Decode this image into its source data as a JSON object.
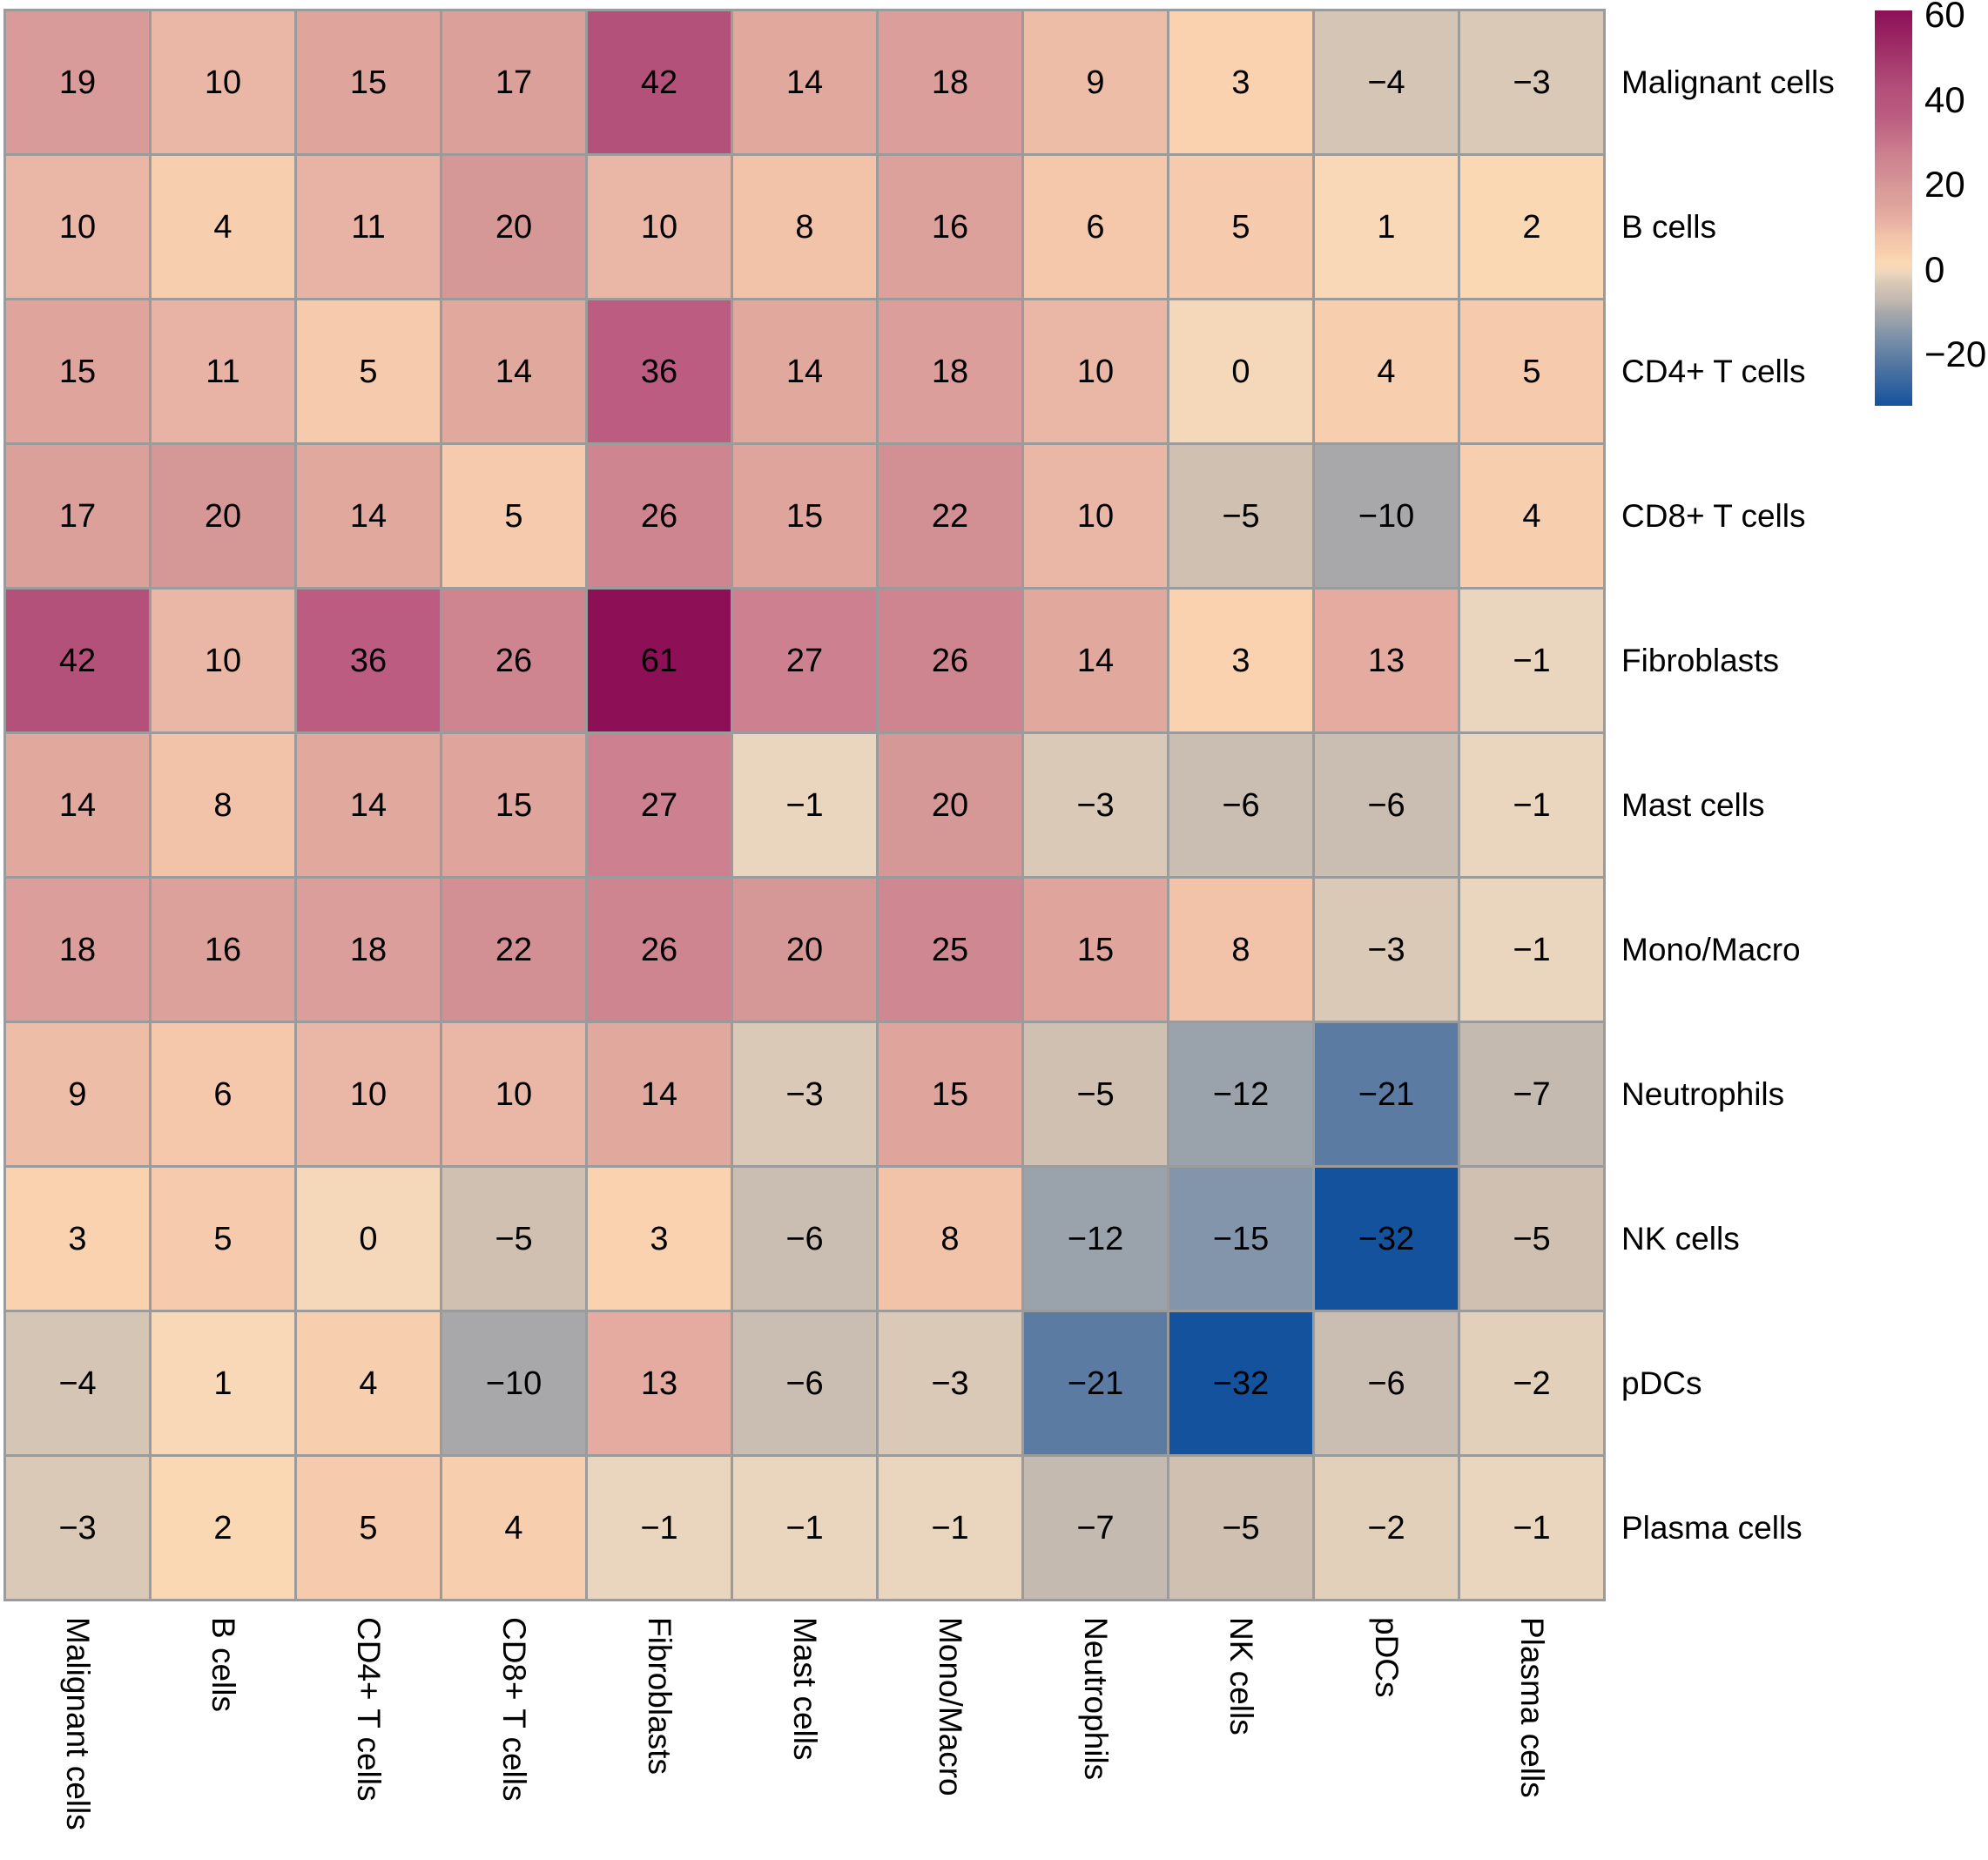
{
  "chart_data": {
    "type": "heatmap",
    "title": "",
    "rows": [
      "Malignant cells",
      "B cells",
      "CD4+ T cells",
      "CD8+ T cells",
      "Fibroblasts",
      "Mast cells",
      "Mono/Macro",
      "Neutrophils",
      "NK cells",
      "pDCs",
      "Plasma cells"
    ],
    "cols": [
      "Malignant cells",
      "B cells",
      "CD4+ T cells",
      "CD8+ T cells",
      "Fibroblasts",
      "Mast cells",
      "Mono/Macro",
      "Neutrophils",
      "NK cells",
      "pDCs",
      "Plasma cells"
    ],
    "matrix": [
      [
        19,
        10,
        15,
        17,
        42,
        14,
        18,
        9,
        3,
        -4,
        -3
      ],
      [
        10,
        4,
        11,
        20,
        10,
        8,
        16,
        6,
        5,
        1,
        2
      ],
      [
        15,
        11,
        5,
        14,
        36,
        14,
        18,
        10,
        0,
        4,
        5
      ],
      [
        17,
        20,
        14,
        5,
        26,
        15,
        22,
        10,
        -5,
        -10,
        4
      ],
      [
        42,
        10,
        36,
        26,
        61,
        27,
        26,
        14,
        3,
        13,
        -1
      ],
      [
        14,
        8,
        14,
        15,
        27,
        -1,
        20,
        -3,
        -6,
        -6,
        -1
      ],
      [
        18,
        16,
        18,
        22,
        26,
        20,
        25,
        15,
        8,
        -3,
        -1
      ],
      [
        9,
        6,
        10,
        10,
        14,
        -3,
        15,
        -5,
        -12,
        -21,
        -7
      ],
      [
        3,
        5,
        0,
        -5,
        3,
        -6,
        8,
        -12,
        -15,
        -32,
        -5
      ],
      [
        -4,
        1,
        4,
        -10,
        13,
        -6,
        -3,
        -21,
        -32,
        -6,
        -2
      ],
      [
        -3,
        2,
        5,
        4,
        -1,
        -1,
        -1,
        -7,
        -5,
        -2,
        -1
      ]
    ],
    "value_min": -32,
    "value_max": 61,
    "grid": true,
    "legend_position": "right",
    "colorbar_ticks": [
      60,
      40,
      20,
      0,
      -20
    ],
    "color_anchors": [
      {
        "value": -32,
        "hex": "#15529E"
      },
      {
        "value": -21,
        "hex": "#5C7BA3"
      },
      {
        "value": -15,
        "hex": "#8295AA"
      },
      {
        "value": -12,
        "hex": "#9AA2AB"
      },
      {
        "value": -10,
        "hex": "#A8A8AA"
      },
      {
        "value": -7,
        "hex": "#C4BAB0"
      },
      {
        "value": -5,
        "hex": "#CFC0B2"
      },
      {
        "value": -3,
        "hex": "#D9C9B6"
      },
      {
        "value": -1,
        "hex": "#EAD6BE"
      },
      {
        "value": 0,
        "hex": "#F5D8BA"
      },
      {
        "value": 2,
        "hex": "#FBD8B4"
      },
      {
        "value": 3,
        "hex": "#FAD2AF"
      },
      {
        "value": 5,
        "hex": "#F6CBAD"
      },
      {
        "value": 8,
        "hex": "#F2C3A8"
      },
      {
        "value": 10,
        "hex": "#EAB7A6"
      },
      {
        "value": 13,
        "hex": "#E5ABA1"
      },
      {
        "value": 14,
        "hex": "#E1A89D"
      },
      {
        "value": 16,
        "hex": "#DCA19B"
      },
      {
        "value": 18,
        "hex": "#DB9E9A"
      },
      {
        "value": 20,
        "hex": "#D69897"
      },
      {
        "value": 22,
        "hex": "#D28F94"
      },
      {
        "value": 26,
        "hex": "#CE8590"
      },
      {
        "value": 27,
        "hex": "#CD8190"
      },
      {
        "value": 36,
        "hex": "#BB5C80"
      },
      {
        "value": 42,
        "hex": "#B4517B"
      },
      {
        "value": 61,
        "hex": "#8D0F56"
      }
    ],
    "grid_line_color": "#9B9B9B",
    "background_color": "#FFFFFF",
    "text_color": "#000000"
  }
}
